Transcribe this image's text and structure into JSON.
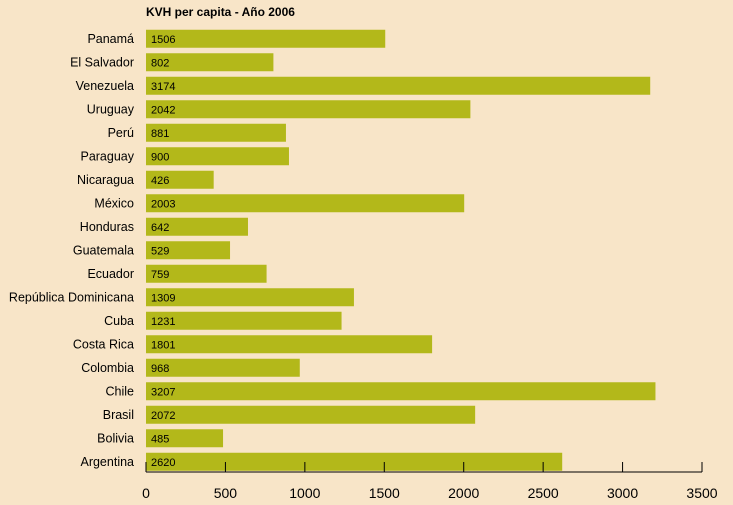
{
  "chart_data": {
    "type": "bar",
    "orientation": "horizontal",
    "title": "KVH per capita - Año 2006",
    "categories": [
      "Panamá",
      "El Salvador",
      "Venezuela",
      "Uruguay",
      "Perú",
      "Paraguay",
      "Nicaragua",
      "México",
      "Honduras",
      "Guatemala",
      "Ecuador",
      "República Dominicana",
      "Cuba",
      "Costa Rica",
      "Colombia",
      "Chile",
      "Brasil",
      "Bolivia",
      "Argentina"
    ],
    "values": [
      1506,
      802,
      3174,
      2042,
      881,
      900,
      426,
      2003,
      642,
      529,
      759,
      1309,
      1231,
      1801,
      968,
      3207,
      2072,
      485,
      2620
    ],
    "value_labels": [
      "1506",
      "802",
      "3174",
      "2042",
      "881",
      "900",
      "426",
      "2003",
      "642",
      "529",
      "759",
      "1309",
      "1231",
      "1801",
      "968",
      "3207",
      "2072",
      "485",
      "2620"
    ],
    "xlim": [
      0,
      3500
    ],
    "xticks": [
      0,
      500,
      1000,
      1500,
      2000,
      2500,
      3000,
      3500
    ],
    "xtick_labels": [
      "0",
      "500",
      "1000",
      "1500",
      "2000",
      "2500",
      "3000",
      "3500"
    ],
    "xlabel": "",
    "ylabel": "",
    "grid": false,
    "legend": "none",
    "colors": {
      "background": "#f8e5c8",
      "bar": "#b3b81a",
      "axis": "#000000"
    }
  }
}
